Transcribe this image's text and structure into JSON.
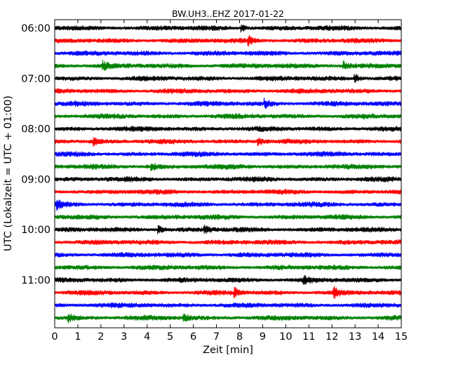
{
  "chart_data": {
    "type": "line",
    "subtype": "dayplot-seismogram",
    "title": "BW.UH3..EHZ 2017-01-22",
    "xlabel": "Zeit  [min]",
    "ylabel": "UTC (Lokalzeit = UTC + 01:00)",
    "xlim": [
      0,
      15
    ],
    "x_ticks": [
      0,
      1,
      2,
      3,
      4,
      5,
      6,
      7,
      8,
      9,
      10,
      11,
      12,
      13,
      14,
      15
    ],
    "y_tick_labels": [
      "06:00",
      "07:00",
      "08:00",
      "09:00",
      "10:00",
      "11:00"
    ],
    "trace_start_times": [
      "06:00",
      "06:15",
      "06:30",
      "06:45",
      "07:00",
      "07:15",
      "07:30",
      "07:45",
      "08:00",
      "08:15",
      "08:30",
      "08:45",
      "09:00",
      "09:15",
      "09:30",
      "09:45",
      "10:00",
      "10:15",
      "10:30",
      "10:45",
      "11:00",
      "11:15",
      "11:30",
      "11:45"
    ],
    "trace_colors": [
      "#000000",
      "#ff0000",
      "#0000ff",
      "#008000"
    ],
    "grid": false,
    "legend": "none",
    "events": [
      {
        "trace": 0,
        "minute": 8.1
      },
      {
        "trace": 1,
        "minute": 8.4
      },
      {
        "trace": 3,
        "minute": 2.1
      },
      {
        "trace": 3,
        "minute": 12.5
      },
      {
        "trace": 4,
        "minute": 13.0
      },
      {
        "trace": 6,
        "minute": 9.1
      },
      {
        "trace": 9,
        "minute": 1.7
      },
      {
        "trace": 9,
        "minute": 8.8
      },
      {
        "trace": 11,
        "minute": 4.2
      },
      {
        "trace": 14,
        "minute": 0.1
      },
      {
        "trace": 16,
        "minute": 4.5
      },
      {
        "trace": 16,
        "minute": 6.5
      },
      {
        "trace": 20,
        "minute": 10.8
      },
      {
        "trace": 21,
        "minute": 7.8
      },
      {
        "trace": 21,
        "minute": 12.1
      },
      {
        "trace": 23,
        "minute": 0.6
      },
      {
        "trace": 23,
        "minute": 5.6
      }
    ]
  }
}
